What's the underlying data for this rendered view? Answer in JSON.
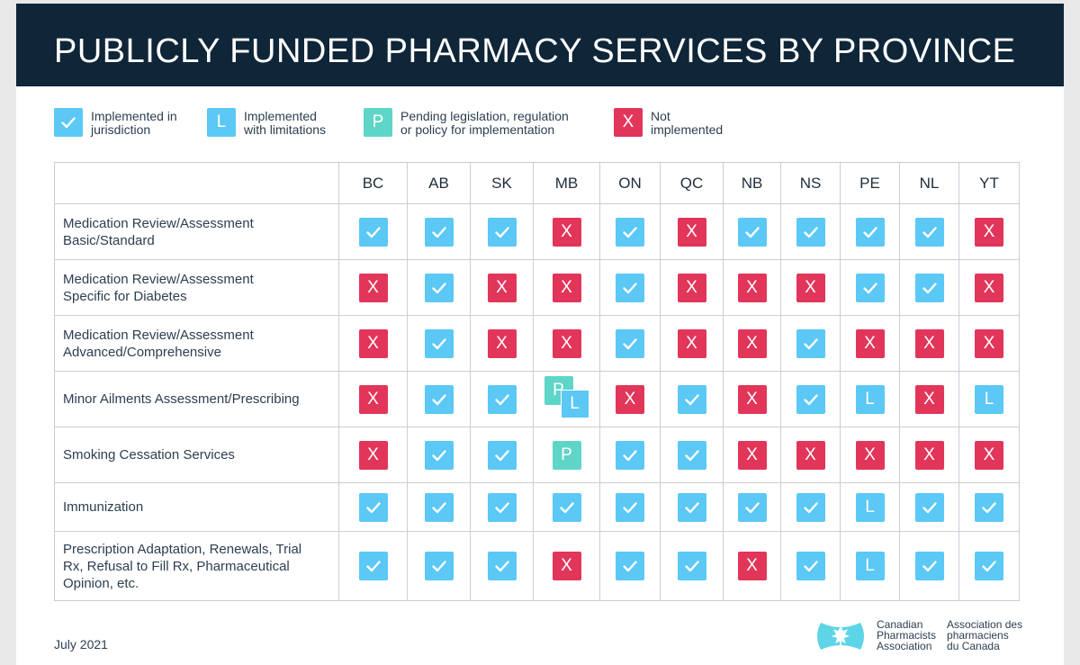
{
  "title": "PUBLICLY FUNDED PHARMACY SERVICES BY PROVINCE",
  "legend": [
    {
      "code": "check",
      "symbol": "",
      "line1": "Implemented in",
      "line2": "jurisdiction"
    },
    {
      "code": "l",
      "symbol": "L",
      "line1": "Implemented",
      "line2": "with limitations"
    },
    {
      "code": "p",
      "symbol": "P",
      "line1": "Pending legislation, regulation",
      "line2": "or policy for implementation"
    },
    {
      "code": "x",
      "symbol": "X",
      "line1": "Not",
      "line2": "implemented"
    }
  ],
  "provinces": [
    "BC",
    "AB",
    "SK",
    "MB",
    "ON",
    "QC",
    "NB",
    "NS",
    "PE",
    "NL",
    "YT"
  ],
  "rows": [
    {
      "line1": "Medication Review/Assessment",
      "line2": "Basic/Standard",
      "line3": "",
      "cells": [
        "check",
        "check",
        "check",
        "x",
        "check",
        "x",
        "check",
        "check",
        "check",
        "check",
        "x"
      ]
    },
    {
      "line1": "Medication Review/Assessment",
      "line2": "Specific for Diabetes",
      "line3": "",
      "cells": [
        "x",
        "check",
        "x",
        "x",
        "check",
        "x",
        "x",
        "x",
        "check",
        "check",
        "x"
      ]
    },
    {
      "line1": "Medication Review/Assessment",
      "line2": "Advanced/Comprehensive",
      "line3": "",
      "cells": [
        "x",
        "check",
        "x",
        "x",
        "check",
        "x",
        "x",
        "check",
        "x",
        "x",
        "x"
      ]
    },
    {
      "line1": "Minor Ailments Assessment/Prescribing",
      "line2": "",
      "line3": "",
      "cells": [
        "x",
        "check",
        "check",
        "p+l",
        "x",
        "check",
        "x",
        "check",
        "l",
        "x",
        "l"
      ]
    },
    {
      "line1": "Smoking Cessation Services",
      "line2": "",
      "line3": "",
      "cells": [
        "x",
        "check",
        "check",
        "p",
        "check",
        "check",
        "x",
        "x",
        "x",
        "x",
        "x"
      ]
    },
    {
      "line1": "Immunization",
      "line2": "",
      "line3": "",
      "cells": [
        "check",
        "check",
        "check",
        "check",
        "check",
        "check",
        "check",
        "check",
        "l",
        "check",
        "check"
      ]
    },
    {
      "line1": "Prescription Adaptation, Renewals, Trial",
      "line2": "Rx, Refusal to Fill Rx, Pharmaceutical",
      "line3": "Opinion, etc.",
      "cells": [
        "check",
        "check",
        "check",
        "x",
        "check",
        "check",
        "x",
        "check",
        "l",
        "check",
        "check"
      ]
    }
  ],
  "symbols": {
    "x": "X",
    "l": "L",
    "p": "P"
  },
  "colors": {
    "banner": "#0f2538",
    "check": "#5bc8f5",
    "x": "#e2355a",
    "l": "#5bc8f5",
    "p": "#5ed5c7"
  },
  "footer": {
    "date": "July 2021",
    "org_en": [
      "Canadian",
      "Pharmacists",
      "Association"
    ],
    "org_fr": [
      "Association des",
      "pharmaciens",
      "du Canada"
    ]
  }
}
